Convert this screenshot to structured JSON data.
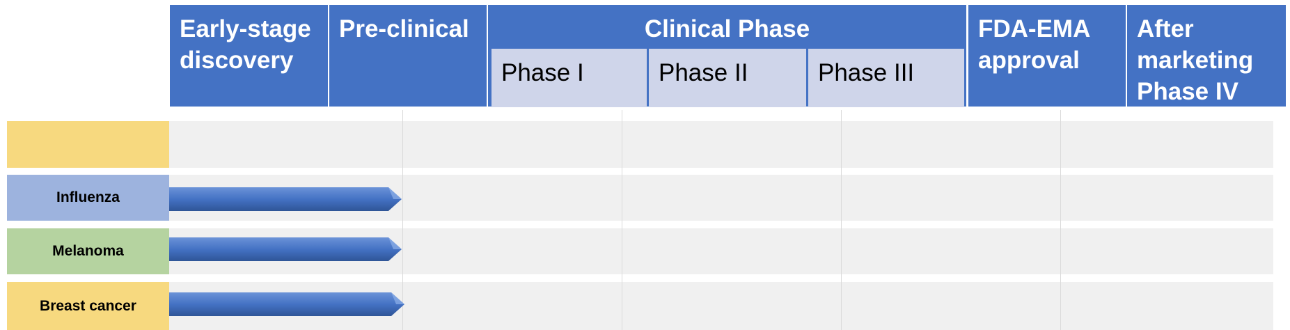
{
  "header": {
    "discovery": "Early-stage discovery",
    "preclinical": "Pre-clinical",
    "clinical": "Clinical Phase",
    "phase1": "Phase I",
    "phase2": "Phase II",
    "phase3": "Phase III",
    "approval": "FDA-EMA approval",
    "after_marketing": "After marketing Phase IV"
  },
  "rows": [
    {
      "label": "",
      "color": "#f7d97f",
      "progress_stage": null
    },
    {
      "label": "Influenza",
      "color": "#9db3de",
      "progress_stage": "Pre-clinical"
    },
    {
      "label": "Melanoma",
      "color": "#b5d3a0",
      "progress_stage": "Pre-clinical"
    },
    {
      "label": "Breast cancer",
      "color": "#f7d97f",
      "progress_stage": "Pre-clinical"
    }
  ],
  "colors": {
    "header_blue": "#4472c4",
    "phase_lavender": "#cfd5ea",
    "lane_gray": "#f0f0f0",
    "arrow_blue": "#4472c4"
  }
}
